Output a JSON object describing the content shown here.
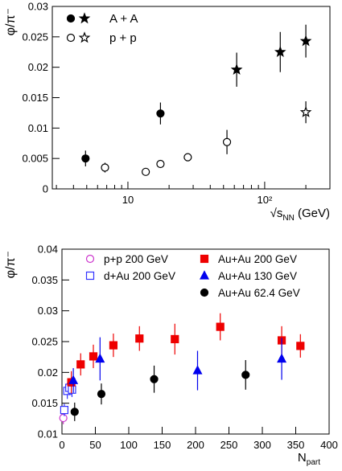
{
  "chart_data": [
    {
      "type": "scatter",
      "ylabel": "φ/π⁻",
      "xlabel": [
        "√s",
        "NN",
        " (GeV)"
      ],
      "xlog": true,
      "xlim": [
        2.8,
        300
      ],
      "xticks": [
        10,
        {
          "value": 100,
          "label": "10²"
        }
      ],
      "xminorticks": [
        3,
        4,
        5,
        6,
        7,
        8,
        9,
        20,
        30,
        40,
        50,
        60,
        70,
        80,
        90,
        200,
        300
      ],
      "ylim": [
        0,
        0.03
      ],
      "yticks": [
        0,
        0.005,
        0.01,
        0.015,
        0.02,
        0.025,
        0.03
      ],
      "legend": "top-left",
      "series": [
        {
          "name": "A + A",
          "color": "#000000",
          "marker": "circle",
          "filled": true,
          "x": [
            4.9,
            17.3
          ],
          "values": [
            0.005,
            0.0124
          ],
          "errors": [
            0.0013,
            0.0018
          ]
        },
        {
          "name": "A + A",
          "color": "#000000",
          "marker": "star",
          "filled": true,
          "x": [
            62.4,
            130,
            200
          ],
          "values": [
            0.0196,
            0.0225,
            0.0243
          ],
          "errors": [
            0.0028,
            0.0033,
            0.0027
          ]
        },
        {
          "name": "p + p",
          "color": "#000000",
          "marker": "circle",
          "filled": false,
          "x": [
            6.8,
            13.5,
            17.3,
            27.4,
            53
          ],
          "values": [
            0.0035,
            0.0028,
            0.0041,
            0.0052,
            0.0077
          ],
          "errors": [
            0.0008,
            0.0004,
            0.0006,
            0.0005,
            0.002
          ]
        },
        {
          "name": "p + p",
          "color": "#000000",
          "marker": "star",
          "filled": false,
          "x": [
            200
          ],
          "values": [
            0.0126
          ],
          "errors": [
            0.0018
          ]
        }
      ]
    },
    {
      "type": "scatter",
      "ylabel": "φ/π⁻",
      "xlabel": [
        "N",
        "part"
      ],
      "xlog": false,
      "xlim": [
        0,
        400
      ],
      "xticks": [
        0,
        50,
        100,
        150,
        200,
        250,
        300,
        350,
        400
      ],
      "ylim": [
        0.01,
        0.04
      ],
      "yticks": [
        0.01,
        0.015,
        0.02,
        0.025,
        0.03,
        0.035,
        0.04
      ],
      "legend": "top",
      "series": [
        {
          "name": "p+p 200 GeV",
          "color": "#cc33cc",
          "marker": "circle",
          "filled": false,
          "x": [
            2
          ],
          "values": [
            0.0126
          ],
          "errors": [
            0.001
          ]
        },
        {
          "name": "d+Au 200 GeV",
          "color": "#3333ff",
          "marker": "square",
          "filled": false,
          "x": [
            3.5,
            8,
            11,
            15
          ],
          "values": [
            0.0139,
            0.017,
            0.0175,
            0.0172
          ],
          "errors": [
            0.001,
            0.0013,
            0.0012,
            0.0012
          ]
        },
        {
          "name": "Au+Au 200 GeV",
          "color": "#ee0000",
          "marker": "square",
          "filled": true,
          "x": [
            14,
            28,
            47,
            77,
            116,
            169,
            237,
            329,
            357
          ],
          "values": [
            0.0184,
            0.0213,
            0.0226,
            0.0244,
            0.0255,
            0.0254,
            0.0274,
            0.0252,
            0.0243
          ],
          "errors": [
            0.0018,
            0.0018,
            0.0019,
            0.0019,
            0.002,
            0.0025,
            0.0022,
            0.0023,
            0.0019
          ]
        },
        {
          "name": "Au+Au 130 GeV",
          "color": "#0000ee",
          "marker": "triangle",
          "filled": true,
          "x": [
            17,
            57,
            203,
            329
          ],
          "values": [
            0.0187,
            0.0222,
            0.0203,
            0.0222
          ],
          "errors": [
            0.002,
            0.0035,
            0.0032,
            0.0034
          ]
        },
        {
          "name": "Au+Au 62.4 GeV",
          "color": "#000000",
          "marker": "circle",
          "filled": true,
          "x": [
            19,
            59,
            138,
            275
          ],
          "values": [
            0.0136,
            0.0165,
            0.0189,
            0.0196
          ],
          "errors": [
            0.0015,
            0.0017,
            0.0022,
            0.0024
          ]
        }
      ]
    }
  ]
}
